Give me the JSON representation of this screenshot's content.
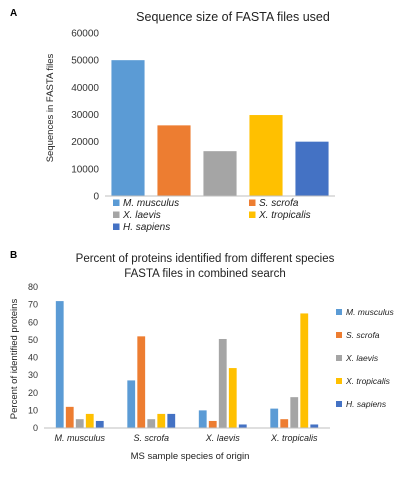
{
  "colors": {
    "M. musculus": "#5b9bd5",
    "S. scrofa": "#ed7d31",
    "X. laevis": "#a5a5a5",
    "X. tropicalis": "#ffc000",
    "H. sapiens": "#4472c4"
  },
  "chart_data": [
    {
      "panel": "A",
      "type": "bar",
      "title": "Sequence size of FASTA files used",
      "xlabel": "",
      "ylabel": "Sequences in FASTA files",
      "ylim": [
        0,
        60000
      ],
      "yticks": [
        "0",
        "10000",
        "20000",
        "30000",
        "40000",
        "50000",
        "60000"
      ],
      "grid": false,
      "legend_position": "bottom",
      "categories": [
        "M. musculus",
        "S. scrofa",
        "X. laevis",
        "X. tropicalis",
        "H. sapiens"
      ],
      "values": [
        50000,
        26000,
        16500,
        29800,
        20000
      ],
      "legend": [
        "M. musculus",
        "S. scrofa",
        "X. laevis",
        "X. tropicalis",
        "H. sapiens"
      ]
    },
    {
      "panel": "B",
      "type": "bar",
      "title": "Percent of proteins identified from different species",
      "subtitle": "FASTA files in combined search",
      "xlabel": "MS sample species of origin",
      "ylabel": "Percent of identified proteins",
      "ylim": [
        0,
        80
      ],
      "yticks": [
        "0",
        "10",
        "20",
        "30",
        "40",
        "50",
        "60",
        "70",
        "80"
      ],
      "grid": false,
      "legend_position": "right",
      "categories": [
        "M. musculus",
        "S. scrofa",
        "X. laevis",
        "X. tropicalis"
      ],
      "series": [
        {
          "name": "M. musculus",
          "values": [
            72,
            27,
            10,
            11
          ]
        },
        {
          "name": "S. scrofa",
          "values": [
            12,
            52,
            4,
            5
          ]
        },
        {
          "name": "X. laevis",
          "values": [
            5,
            5,
            50.5,
            17.5
          ]
        },
        {
          "name": "X. tropicalis",
          "values": [
            8,
            8,
            34,
            65
          ]
        },
        {
          "name": "H. sapiens",
          "values": [
            4,
            8,
            2,
            2
          ]
        }
      ]
    }
  ]
}
